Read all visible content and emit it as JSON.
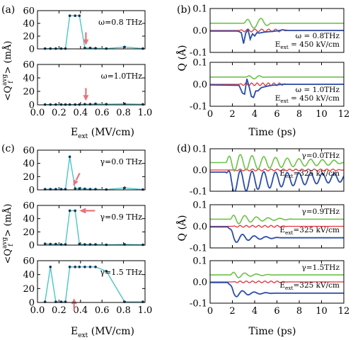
{
  "labels": {
    "panel_a": "(a)",
    "panel_b": "(b)",
    "panel_c": "(c)",
    "panel_d": "(d)",
    "ylabel_left": "<Q_f^avg> (mÅ)",
    "ylabel_right": "Q (Å)",
    "xlabel_left": "E_ext (MV/cm)",
    "xlabel_right": "Time (ps)"
  },
  "colors": {
    "cyan": "#4cc6c6",
    "dot": "#1b3358",
    "arrow": "#e8737a",
    "green": "#6cc24a",
    "red": "#e8313a",
    "blue": "#2a4da8"
  },
  "chart_data": [
    {
      "id": "a1",
      "type": "line",
      "annotation": "ω=0.8 THz",
      "arrow_x": 0.45,
      "arrow_dir": "down",
      "x": [
        0.07,
        0.12,
        0.17,
        0.22,
        0.26,
        0.3,
        0.35,
        0.39,
        0.44,
        0.49,
        0.54,
        0.64,
        0.81,
        0.98
      ],
      "y": [
        0.5,
        0.5,
        0.5,
        0.5,
        0.5,
        52,
        52,
        52,
        1.5,
        1.5,
        1,
        0.5,
        3,
        0.5
      ],
      "ylim": [
        0,
        60
      ],
      "yticks": [
        0,
        20,
        40,
        60
      ],
      "xlim": [
        0,
        1.0
      ]
    },
    {
      "id": "a2",
      "type": "line",
      "annotation": "ω=1.0THz",
      "arrow_x": 0.45,
      "arrow_dir": "down",
      "x": [
        0.07,
        0.12,
        0.17,
        0.22,
        0.26,
        0.3,
        0.35,
        0.39,
        0.44,
        0.49,
        0.54,
        0.64,
        0.81,
        0.98
      ],
      "y": [
        0.5,
        0.5,
        0.5,
        0.5,
        0.5,
        0.5,
        0.5,
        0.5,
        1,
        1,
        1.5,
        1,
        1.5,
        0.8
      ],
      "ylim": [
        0,
        60
      ],
      "yticks": [
        0,
        20,
        40,
        60
      ],
      "xlim": [
        0,
        1.0
      ],
      "xticks": [
        "0.0",
        "0.2",
        "0.4",
        "0.6",
        "0.8",
        "1.0"
      ]
    },
    {
      "id": "c1",
      "type": "line",
      "annotation": "γ=0.0 THz",
      "arrow_x": 0.34,
      "arrow_dir": "downleft",
      "x": [
        0.07,
        0.12,
        0.17,
        0.22,
        0.26,
        0.3,
        0.35,
        0.39,
        0.44,
        0.49,
        0.54,
        0.64,
        0.81,
        0.98
      ],
      "y": [
        1,
        1,
        1,
        1,
        1,
        50,
        2,
        2,
        1.5,
        1,
        1,
        0.5,
        3,
        0.5
      ],
      "ylim": [
        0,
        60
      ],
      "yticks": [
        0,
        20,
        40,
        60
      ],
      "xlim": [
        0,
        1.0
      ]
    },
    {
      "id": "c2",
      "type": "line",
      "annotation": "γ=0.9 THz",
      "arrow_x": 0.39,
      "arrow_dir": "left",
      "x": [
        0.07,
        0.12,
        0.17,
        0.22,
        0.26,
        0.3,
        0.35,
        0.39,
        0.44,
        0.49,
        0.54,
        0.64,
        0.81,
        0.98
      ],
      "y": [
        2,
        1.5,
        1.5,
        1,
        1,
        52,
        52,
        1.5,
        1,
        1,
        1,
        0.5,
        1,
        0.5
      ],
      "ylim": [
        0,
        60
      ],
      "yticks": [
        0,
        20,
        40,
        60
      ],
      "xlim": [
        0,
        1.0
      ]
    },
    {
      "id": "c3",
      "type": "line",
      "annotation": "γ=1.5 THz",
      "arrow_x": 0.34,
      "arrow_dir": "up",
      "x": [
        0.07,
        0.12,
        0.17,
        0.22,
        0.26,
        0.3,
        0.35,
        0.39,
        0.44,
        0.49,
        0.54,
        0.64,
        0.81,
        0.98
      ],
      "y": [
        1,
        51,
        1,
        1,
        1,
        51,
        51,
        51,
        51,
        51,
        51,
        45,
        1,
        1
      ],
      "ylim": [
        0,
        60
      ],
      "yticks": [
        0,
        20,
        40,
        60
      ],
      "xlim": [
        0,
        1.0
      ],
      "xticks": [
        "0.0",
        "0.2",
        "0.4",
        "0.6",
        "0.8",
        "1.0"
      ]
    },
    {
      "id": "b1",
      "type": "line",
      "annotation": [
        "ω = 0.8THz",
        "E_ext = 450 kV/cm"
      ],
      "xlim": [
        0,
        12
      ],
      "ylim": [
        -0.1,
        0.1
      ],
      "yticks": [
        "-0.1",
        "0.0",
        "0.1"
      ],
      "green": {
        "base": 0.033,
        "t0": 3.0,
        "t1": 5.5,
        "amp": 0.022,
        "freq": 0.8
      },
      "red": {
        "base": 0.0,
        "t0": 2.6,
        "t1": 7.0,
        "amp": 0.006,
        "freq": 1.6
      },
      "blue": {
        "t": [
          0,
          2.5,
          2.8,
          3.0,
          3.2,
          3.4,
          3.6,
          3.8,
          4.0,
          4.2,
          4.4,
          4.8,
          5.2,
          5.6,
          6.0,
          6.5,
          7.0,
          12
        ],
        "q": [
          -0.003,
          -0.003,
          -0.01,
          -0.06,
          -0.012,
          0.004,
          -0.04,
          -0.015,
          -0.025,
          -0.01,
          -0.012,
          -0.008,
          -0.006,
          -0.004,
          -0.002,
          0.003,
          0.0,
          0.0
        ]
      }
    },
    {
      "id": "b2",
      "type": "line",
      "annotation": [
        "ω = 1.0THz",
        "E_ext = 450 kV/cm"
      ],
      "xlim": [
        0,
        12
      ],
      "ylim": [
        -0.1,
        0.1
      ],
      "yticks": [
        "-0.1",
        "0.0",
        "0.1"
      ],
      "xticks": [
        "0",
        "2",
        "4",
        "6",
        "8",
        "10",
        "12"
      ],
      "green": {
        "base": 0.033,
        "t0": 3.2,
        "t1": 5.0,
        "amp": 0.008,
        "freq": 1.0
      },
      "red": {
        "base": 0.0,
        "t0": 2.6,
        "t1": 7.0,
        "amp": 0.006,
        "freq": 2.0
      },
      "blue": {
        "t": [
          0,
          2.6,
          2.9,
          3.1,
          3.3,
          3.5,
          3.7,
          3.9,
          4.1,
          4.3,
          4.6,
          5.0,
          5.5,
          6.0,
          6.5,
          7.0,
          12
        ],
        "q": [
          -0.003,
          -0.005,
          -0.04,
          -0.045,
          0.025,
          -0.01,
          -0.055,
          -0.06,
          -0.03,
          -0.03,
          -0.015,
          -0.01,
          -0.005,
          -0.003,
          0.0,
          0.0,
          0.0
        ]
      }
    },
    {
      "id": "d1",
      "type": "line",
      "annotation": [
        "γ=0.0THz",
        "E_ext=325 kV/cm"
      ],
      "xlim": [
        0,
        12
      ],
      "ylim": [
        -0.1,
        0.1
      ],
      "yticks": [
        "-0.1",
        "0.0",
        "0.1"
      ],
      "green": {
        "base": 0.035,
        "t0": 1.4,
        "t1": 12,
        "amp": 0.045,
        "freq": 0.95,
        "decay": 0.14
      },
      "red": {
        "base": 0.0,
        "t0": 2.0,
        "t1": 12,
        "amp": 0.004,
        "freq": 1.8
      },
      "blue": {
        "mode": "osc",
        "base": -0.01,
        "t0": 1.4,
        "amp": 0.07,
        "freq": 0.95,
        "decay": 0.1,
        "offset": -0.045,
        "offset_decay": 0.05
      }
    },
    {
      "id": "d2",
      "type": "line",
      "annotation": [
        "γ=0.9THz",
        "E_ext=325 kV/cm"
      ],
      "xlim": [
        0,
        12
      ],
      "ylim": [
        -0.1,
        0.1
      ],
      "yticks": [
        "-0.1",
        "0.0",
        "0.1"
      ],
      "green": {
        "base": 0.033,
        "t0": 1.8,
        "t1": 7.5,
        "amp": 0.03,
        "freq": 0.95,
        "decay": 0.45
      },
      "red": {
        "base": 0.0,
        "t0": 2.0,
        "t1": 7.0,
        "amp": 0.004,
        "freq": 1.8
      },
      "blue": {
        "mode": "osc",
        "base": -0.003,
        "t0": 1.6,
        "amp": 0.04,
        "freq": 0.95,
        "decay": 0.55,
        "offset": -0.05,
        "offset_decay": 0.0,
        "t1": 6.5
      }
    },
    {
      "id": "d3",
      "type": "line",
      "annotation": [
        "γ=1.5THz",
        "E_ext=325 kV/cm"
      ],
      "xlim": [
        0,
        12
      ],
      "ylim": [
        -0.1,
        0.1
      ],
      "yticks": [
        "-0.1",
        "0.0",
        "0.1"
      ],
      "xticks": [
        "0",
        "2",
        "4",
        "6",
        "8",
        "10",
        "12"
      ],
      "green": {
        "base": 0.033,
        "t0": 1.8,
        "t1": 6.0,
        "amp": 0.022,
        "freq": 0.95,
        "decay": 0.7
      },
      "red": {
        "base": 0.0,
        "t0": 2.0,
        "t1": 7.0,
        "amp": 0.004,
        "freq": 1.8
      },
      "blue": {
        "mode": "osc",
        "base": -0.003,
        "t0": 1.6,
        "amp": 0.035,
        "freq": 0.95,
        "decay": 0.7,
        "offset": -0.05,
        "offset_decay": 0.0,
        "t1": 6.0
      }
    }
  ]
}
